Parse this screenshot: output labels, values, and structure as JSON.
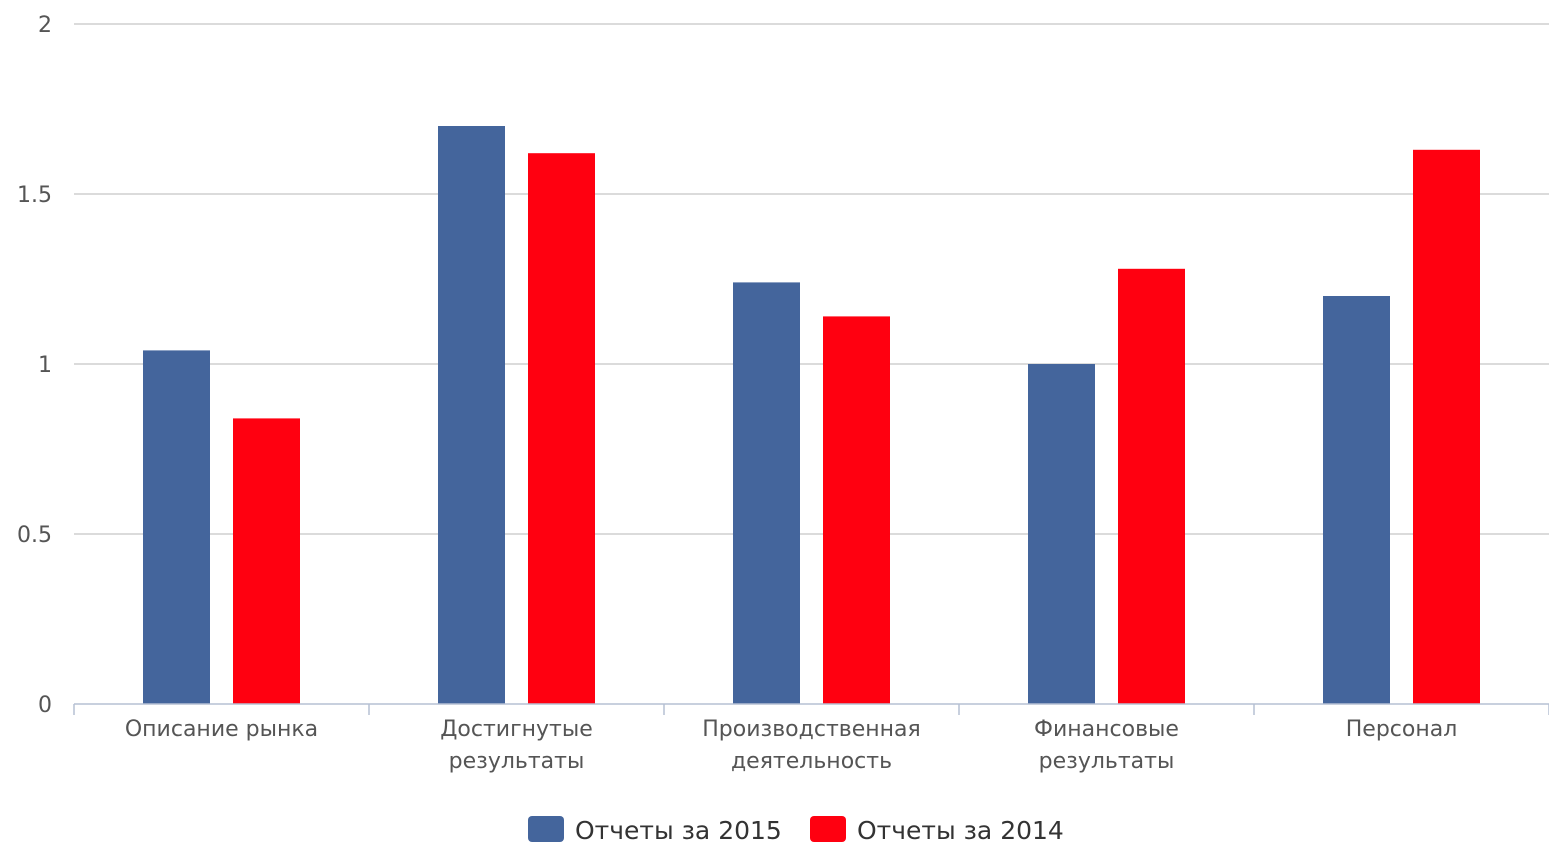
{
  "chart_data": {
    "type": "bar",
    "categories": [
      [
        "Описание рынка"
      ],
      [
        "Достигнутые",
        "результаты"
      ],
      [
        "Производственная",
        "деятельность"
      ],
      [
        "Финансовые",
        "результаты"
      ],
      [
        "Персонал"
      ]
    ],
    "series": [
      {
        "name": "Отчеты за 2015",
        "color": "#44659c",
        "values": [
          1.04,
          1.7,
          1.24,
          1.0,
          1.2
        ]
      },
      {
        "name": "Отчеты за 2014",
        "color": "#ff0010",
        "values": [
          0.84,
          1.62,
          1.14,
          1.28,
          1.63
        ]
      }
    ],
    "ylim": [
      0,
      2
    ],
    "yticks": [
      "0",
      "0.5",
      "1",
      "1.5",
      "2"
    ],
    "grid": true,
    "legend": "bottom-center",
    "gridColor": "#cfcfcf",
    "axisColor": "#b5c0d3"
  }
}
